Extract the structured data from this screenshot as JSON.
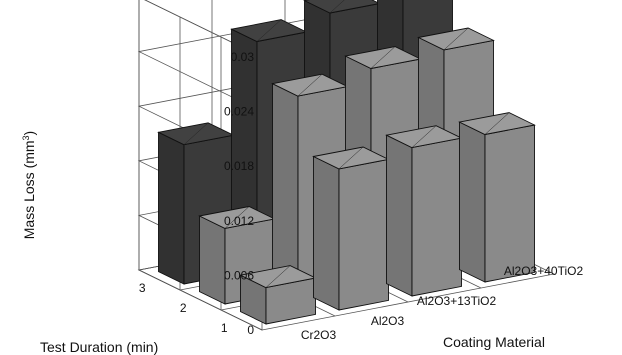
{
  "chart_data": {
    "type": "bar",
    "subtype": "3d-grouped",
    "ylabel_main": "Mass Loss (mm",
    "ylabel_sup": "3",
    "ylabel_end": ")",
    "xlabel": "Coating Material",
    "zlabel": "Test Duration (min)",
    "categories": [
      "Cr2O3",
      "Al2O3",
      "Al2O3+13TiO2",
      "Al2O3+40TiO2"
    ],
    "z_categories": [
      "1",
      "2",
      "3"
    ],
    "ylim": [
      0,
      0.03
    ],
    "yticks": [
      "0",
      "0.006",
      "0.012",
      "0.018",
      "0.024",
      "0.03"
    ],
    "series": [
      {
        "name": "1",
        "values": [
          0.004,
          0.0155,
          0.0163,
          0.0162
        ],
        "color": "#8a8a8a"
      },
      {
        "name": "2",
        "values": [
          0.0083,
          0.0213,
          0.0228,
          0.0233
        ],
        "color": "#8a8a8a"
      },
      {
        "name": "3",
        "values": [
          0.0153,
          0.0251,
          0.0267,
          0.0295
        ],
        "color": "#3a3a3a"
      }
    ]
  }
}
